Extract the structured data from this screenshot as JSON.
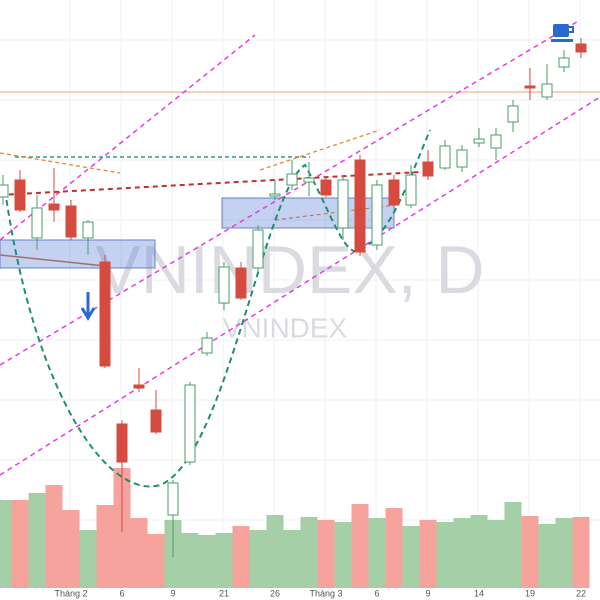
{
  "chart_data": {
    "type": "candlestick",
    "title": "VNINDEX, D",
    "subtitle": "VNINDEX",
    "categories": [
      null,
      null,
      null,
      null,
      "Tháng 2",
      null,
      null,
      "6",
      null,
      null,
      "9",
      null,
      null,
      "21",
      null,
      null,
      "26",
      null,
      null,
      "Tháng 3",
      null,
      null,
      "6",
      null,
      null,
      "9",
      null,
      null,
      "14",
      null,
      null,
      "19",
      null,
      null,
      "22"
    ],
    "open": [
      403,
      420,
      362,
      396,
      394,
      362,
      338,
      176,
      215,
      190,
      85,
      138,
      247,
      297,
      332,
      332,
      404,
      415,
      418,
      420,
      372,
      440,
      355,
      420,
      395,
      438,
      432,
      433,
      457,
      452,
      478,
      514,
      503,
      533,
      556
    ],
    "close": [
      415,
      390,
      392,
      390,
      363,
      378,
      234,
      138,
      212,
      168,
      117,
      215,
      262,
      333,
      302,
      370,
      406,
      426,
      422,
      405,
      420,
      348,
      415,
      395,
      425,
      424,
      454,
      450,
      461,
      465,
      494,
      512,
      516,
      542,
      548
    ],
    "high": [
      425,
      430,
      405,
      432,
      400,
      380,
      345,
      180,
      232,
      210,
      120,
      218,
      268,
      338,
      338,
      375,
      420,
      440,
      438,
      424,
      425,
      445,
      420,
      425,
      435,
      450,
      460,
      455,
      472,
      472,
      500,
      532,
      536,
      550,
      562
    ],
    "low": [
      395,
      388,
      350,
      378,
      360,
      345,
      232,
      68,
      208,
      166,
      43,
      135,
      244,
      290,
      300,
      328,
      400,
      410,
      404,
      403,
      360,
      344,
      350,
      392,
      392,
      420,
      430,
      428,
      453,
      440,
      468,
      500,
      500,
      528,
      542
    ],
    "volume": [
      88,
      88,
      95,
      103,
      78,
      58,
      83,
      120,
      70,
      54,
      68,
      55,
      53,
      55,
      62,
      58,
      73,
      58,
      71,
      68,
      66,
      84,
      70,
      80,
      62,
      68,
      66,
      70,
      73,
      68,
      86,
      72,
      64,
      70,
      71
    ],
    "up_color": "#4a9e6a",
    "down_color": "#d64b3f",
    "volume_up_color": "#a5cfa6",
    "volume_down_color": "#f6a39d"
  }
}
